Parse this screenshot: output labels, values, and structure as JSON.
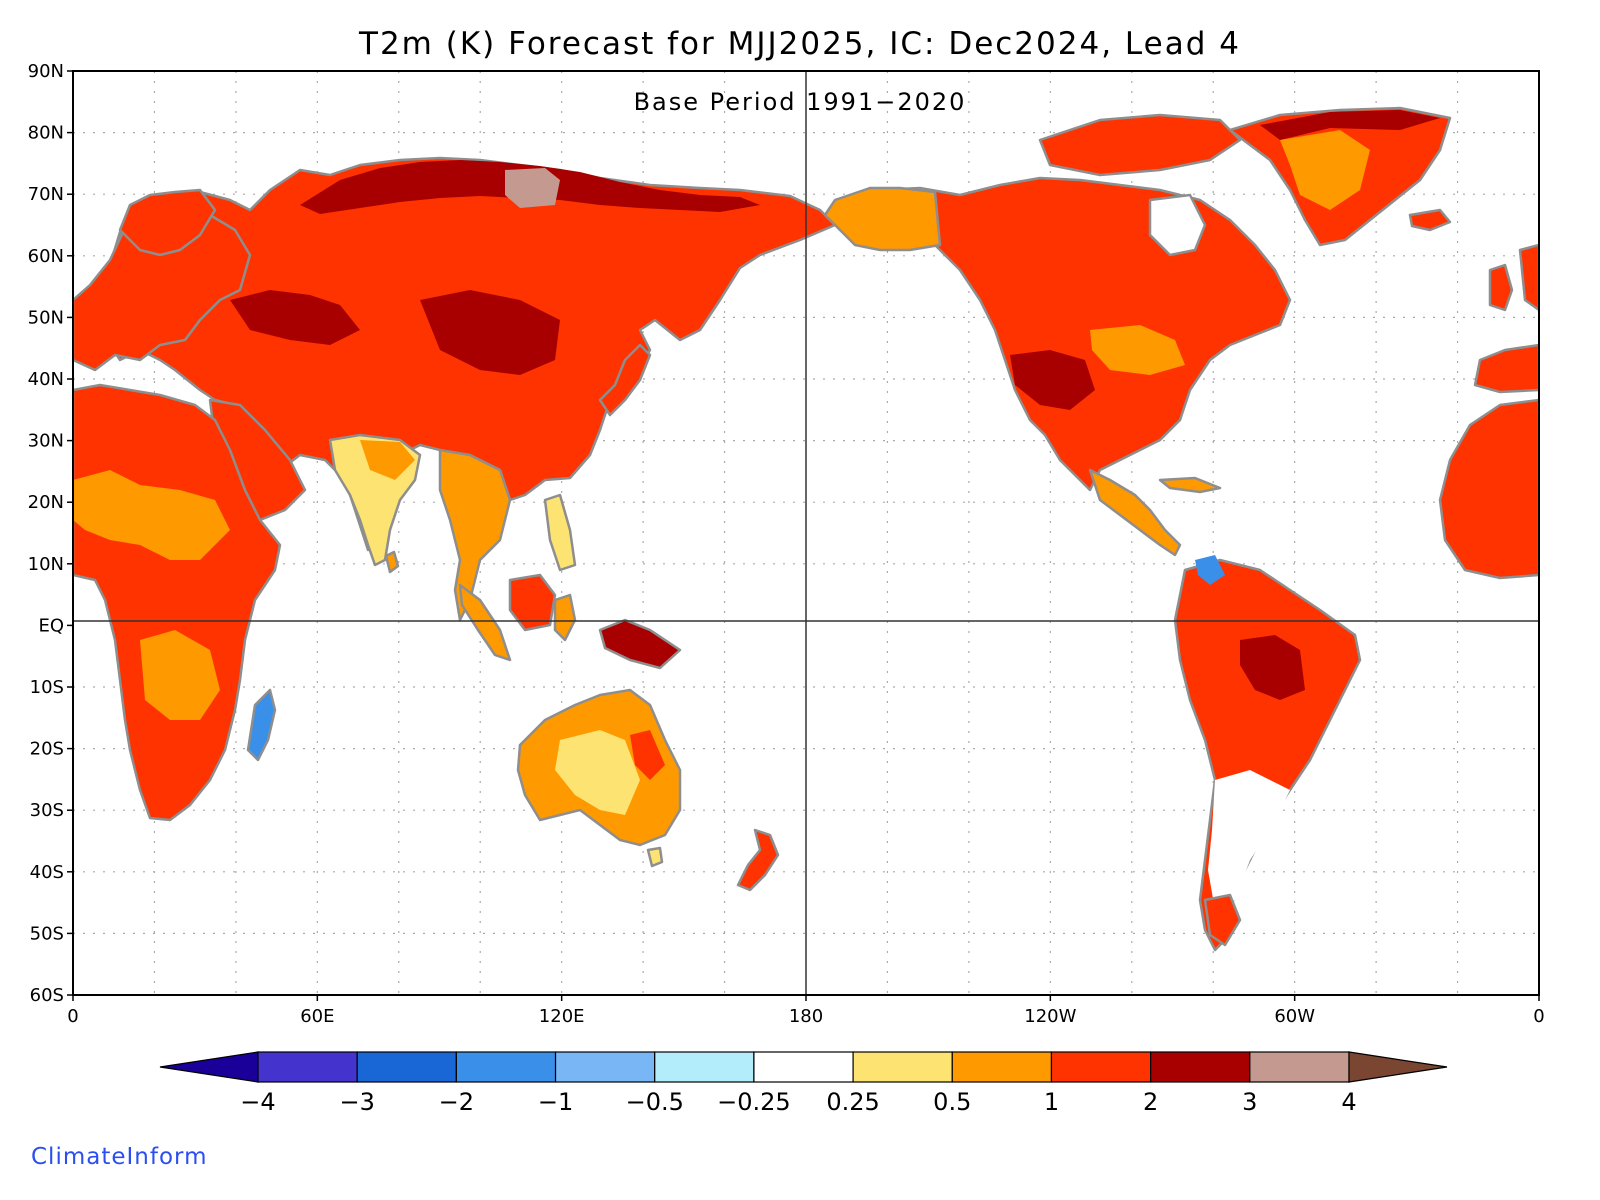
{
  "title": "T2m (K) Forecast for MJJ2025, IC: Dec2024, Lead 4",
  "subtitle": "Base Period 1991−2020",
  "brand": "ClimateInform",
  "map": {
    "projection": "equirectangular, Pacific-centered",
    "lat_range": [
      -60,
      90
    ],
    "lon_range_east": [
      0,
      360
    ],
    "gridlines": "dotted",
    "reference_lines": [
      "EQ",
      "180"
    ],
    "lat_labels": [
      "90N",
      "80N",
      "70N",
      "60N",
      "50N",
      "40N",
      "30N",
      "20N",
      "10N",
      "EQ",
      "10S",
      "20S",
      "30S",
      "40S",
      "50S",
      "60S"
    ],
    "lon_labels": [
      "0",
      "60E",
      "120E",
      "180",
      "120W",
      "60W",
      "0"
    ],
    "coastline_color": "#909090",
    "lake_color": "#000000",
    "land_regions": [
      {
        "name": "Eurasia",
        "color": "#ff3300"
      },
      {
        "name": "Siberia north",
        "color": "#a80000"
      },
      {
        "name": "Taymyr",
        "color": "#c49a90"
      },
      {
        "name": "India",
        "color": "#fde372"
      },
      {
        "name": "Southeast Asia",
        "color": "#ff9900"
      },
      {
        "name": "Africa",
        "color": "#ff3300"
      },
      {
        "name": "Madagascar",
        "color": "#3a8fe8"
      },
      {
        "name": "Arabia",
        "color": "#ff3300"
      },
      {
        "name": "Europe",
        "color": "#ff3300"
      },
      {
        "name": "Indonesia",
        "color": "#ff9900"
      },
      {
        "name": "New Guinea",
        "color": "#a80000"
      },
      {
        "name": "Australia",
        "color": "#ff9900"
      },
      {
        "name": "New Zealand",
        "color": "#ff3300"
      },
      {
        "name": "North America",
        "color": "#ff3300"
      },
      {
        "name": "United States",
        "color": "#ff3300"
      },
      {
        "name": "Central America",
        "color": "#ff9900"
      },
      {
        "name": "South America",
        "color": "#ff3300"
      },
      {
        "name": "Southern South America",
        "color": "#ffffff"
      },
      {
        "name": "Greenland",
        "color": "#ff3300"
      },
      {
        "name": "Alaska",
        "color": "#ff9900"
      },
      {
        "name": "West Africa",
        "color": "#ff3300"
      },
      {
        "name": "Iberia",
        "color": "#ff3300"
      }
    ]
  },
  "colorbar": {
    "extend": "both",
    "tick_labels": [
      "−4",
      "−3",
      "−2",
      "−1",
      "−0.5",
      "−0.25",
      "0.25",
      "0.5",
      "1",
      "2",
      "3",
      "4"
    ],
    "colors": [
      "#4433cc",
      "#1966d6",
      "#3a8fe8",
      "#78b6f5",
      "#b3ecfb",
      "#ffffff",
      "#fde372",
      "#ff9900",
      "#ff3300",
      "#a80000",
      "#c49a90"
    ],
    "under_color": "#1a0099",
    "over_color": "#7a4632"
  }
}
